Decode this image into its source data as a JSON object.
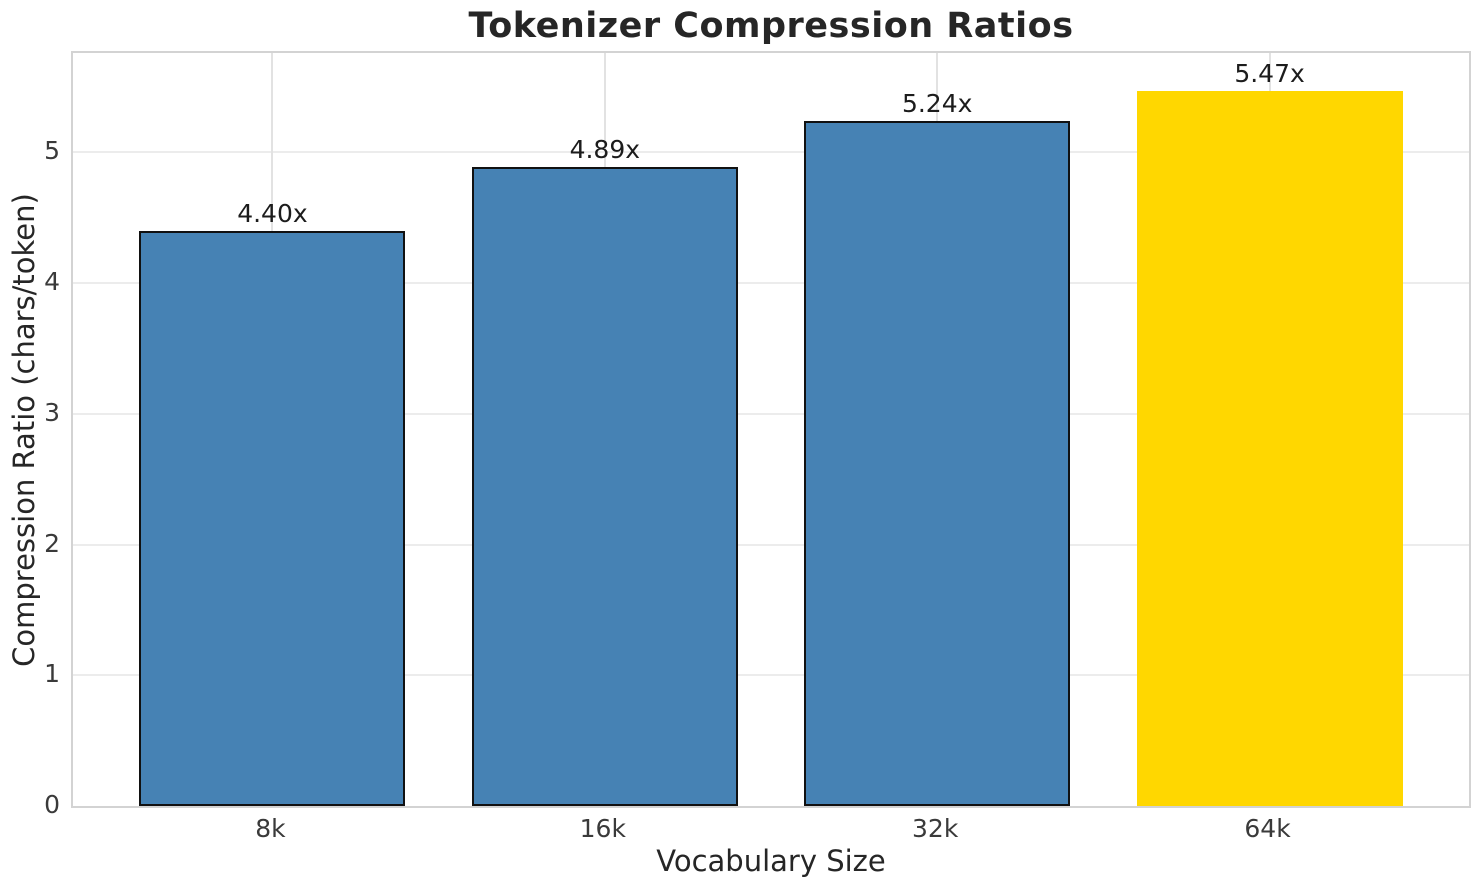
{
  "chart_data": {
    "type": "bar",
    "title": "Tokenizer Compression Ratios",
    "xlabel": "Vocabulary Size",
    "ylabel": "Compression Ratio (chars/token)",
    "categories": [
      "8k",
      "16k",
      "32k",
      "64k"
    ],
    "values": [
      4.4,
      4.89,
      5.24,
      5.47
    ],
    "bar_labels": [
      "4.40x",
      "4.89x",
      "5.24x",
      "5.47x"
    ],
    "bar_colors": [
      "#4682B4",
      "#4682B4",
      "#4682B4",
      "#FFD700"
    ],
    "bar_edge_colors": [
      "#111111",
      "#111111",
      "#111111",
      "none"
    ],
    "highlighted_category": "64k",
    "yticks": [
      0,
      1,
      2,
      3,
      4,
      5
    ],
    "ylim": [
      0,
      5.76
    ],
    "xlim_units": [
      -0.6,
      3.6
    ],
    "bar_width_units": 0.8,
    "grid": true,
    "legend_position": "none",
    "background_color": "#ffffff",
    "grid_color": "#ececec",
    "spine_color": "#d3d3d3"
  }
}
